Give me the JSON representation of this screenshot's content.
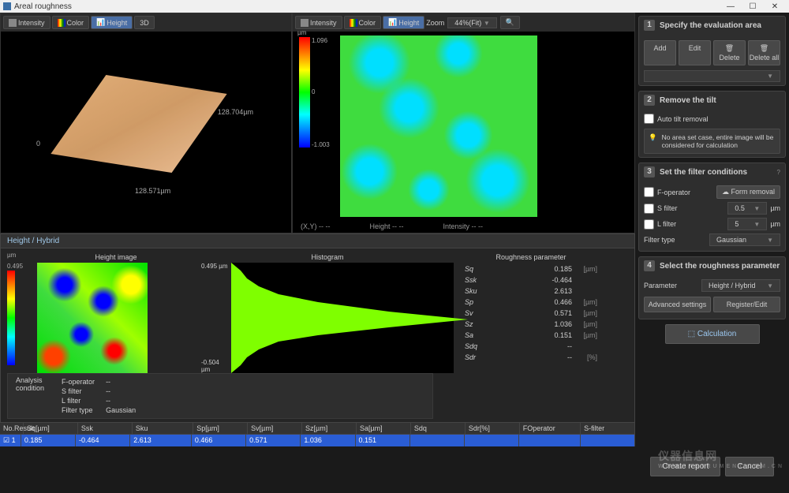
{
  "window": {
    "title": "Areal roughness",
    "min": "—",
    "max": "☐",
    "close": "✕"
  },
  "toolbar3d": {
    "intensity": "Intensity",
    "color": "Color",
    "height": "Height",
    "threed": "3D"
  },
  "toolbar_map": {
    "intensity": "Intensity",
    "color": "Color",
    "height": "Height",
    "zoom_label": "Zoom",
    "zoom_value": "44%(Fit)"
  },
  "surface": {
    "dim_right": "128.704µm",
    "dim_bottom": "128.571µm",
    "zero": "0"
  },
  "colorbar_top": {
    "unit": "µm",
    "max": "1.096",
    "mid": "0",
    "min": "-1.003"
  },
  "xy": {
    "xy": "(X,Y)  --  --",
    "height": "Height  --  --",
    "intensity": "Intensity  --  --"
  },
  "steps": {
    "s1": {
      "title": "Specify the evaluation area",
      "add": "Add",
      "edit": "Edit",
      "delete": "Delete",
      "deleteall": "Delete all"
    },
    "s2": {
      "title": "Remove the tilt",
      "auto": "Auto tilt removal",
      "hint": "No area set case, entire image will be considered for calculation"
    },
    "s3": {
      "title": "Set the filter conditions",
      "fop": "F-operator",
      "form": "Form removal",
      "sfilt": "S filter",
      "sval": "0.5",
      "sunit": "µm",
      "lfilt": "L filter",
      "lval": "5",
      "lunit": "µm",
      "ftype": "Filter type",
      "gaussian": "Gaussian"
    },
    "s4": {
      "title": "Select the roughness parameter",
      "param": "Parameter",
      "hh": "Height / Hybrid",
      "adv": "Advanced settings",
      "reg": "Register/Edit"
    },
    "calc": "Calculation"
  },
  "hh": {
    "title": "Height / Hybrid",
    "col1": "Height image",
    "col2": "Histogram",
    "col3": "Roughness parameter",
    "cb_unit": "µm",
    "cb_max": "0.495",
    "cb_min": "-0.504",
    "hist_max": "0.495 µm",
    "hist_min": "-0.504 µm"
  },
  "roughness": [
    {
      "sym": "Sq",
      "val": "0.185",
      "unit": "[µm]"
    },
    {
      "sym": "Ssk",
      "val": "-0.464",
      "unit": ""
    },
    {
      "sym": "Sku",
      "val": "2.613",
      "unit": ""
    },
    {
      "sym": "Sp",
      "val": "0.466",
      "unit": "[µm]"
    },
    {
      "sym": "Sv",
      "val": "0.571",
      "unit": "[µm]"
    },
    {
      "sym": "Sz",
      "val": "1.036",
      "unit": "[µm]"
    },
    {
      "sym": "Sa",
      "val": "0.151",
      "unit": "[µm]"
    },
    {
      "sym": "Sdq",
      "val": "--",
      "unit": ""
    },
    {
      "sym": "Sdr",
      "val": "--",
      "unit": "[%]"
    }
  ],
  "analysis": {
    "label": "Analysis\ncondition",
    "fop": "F-operator",
    "fop_v": "--",
    "sfilt": "S filter",
    "sfilt_v": "--",
    "lfilt": "L filter",
    "lfilt_v": "--",
    "ftype": "Filter type",
    "ftype_v": "Gaussian"
  },
  "results": {
    "hdr": [
      "No.Result",
      "Sq[µm]",
      "Ssk",
      "Sku",
      "Sp[µm]",
      "Sv[µm]",
      "Sz[µm]",
      "Sa[µm]",
      "Sdq",
      "Sdr[%]",
      "FOperator",
      "S-filter"
    ],
    "row": [
      "☑ 1",
      "0.185",
      "-0.464",
      "2.613",
      "0.466",
      "0.571",
      "1.036",
      "0.151",
      "",
      "",
      "",
      ""
    ]
  },
  "footer": {
    "create": "Create report",
    "cancel": "Cancel"
  },
  "watermark": {
    "cn": "仪器信息网",
    "en": "WWW.INSTRUMENT.COM.CN"
  },
  "palette": {
    "bg": "#1a1a1a",
    "panel": "#2e2e2e",
    "border": "#444",
    "accent": "#2a5dd4",
    "btn": "#484848",
    "gradient": [
      "#ff0000",
      "#ffff00",
      "#00ff00",
      "#00ffff",
      "#0000ff"
    ]
  }
}
